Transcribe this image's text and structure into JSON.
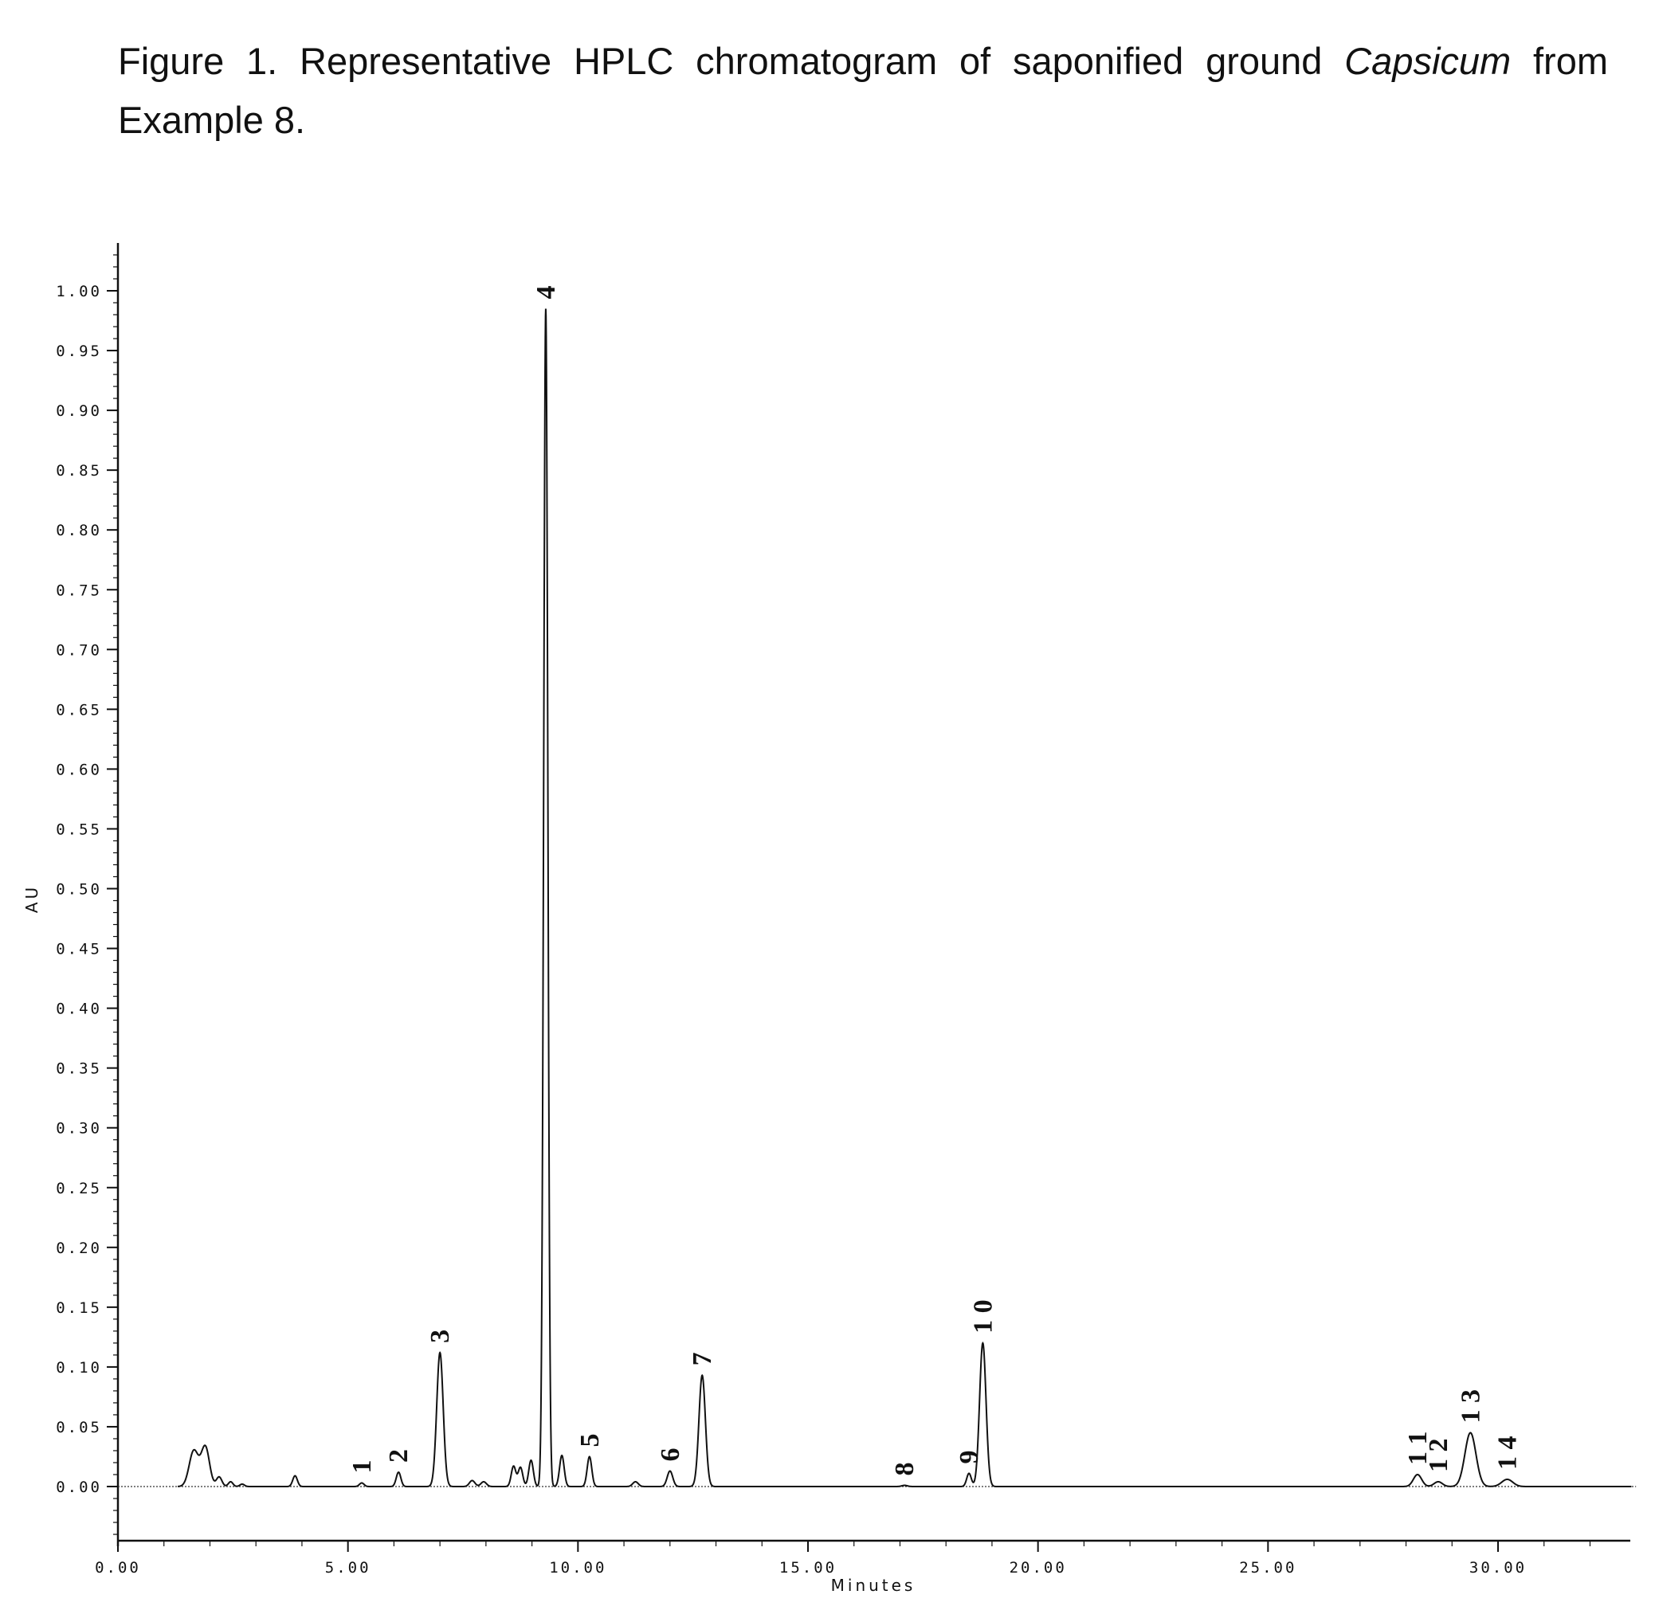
{
  "caption": {
    "prefix": "Figure 1.  Representative HPLC chromatogram of saponified ground ",
    "italic": "Capsicum",
    "suffix": " from Example 8."
  },
  "chart_data": {
    "type": "line",
    "title": "",
    "xlabel": "Minutes",
    "ylabel": "AU",
    "xlim": [
      0,
      33
    ],
    "ylim": [
      -0.05,
      1.04
    ],
    "x_ticks": [
      "0.00",
      "5.00",
      "10.00",
      "15.00",
      "20.00",
      "25.00",
      "30.00"
    ],
    "y_ticks": [
      "0.00",
      "0.05",
      "0.10",
      "0.15",
      "0.20",
      "0.25",
      "0.30",
      "0.35",
      "0.40",
      "0.45",
      "0.50",
      "0.55",
      "0.60",
      "0.65",
      "0.70",
      "0.75",
      "0.80",
      "0.85",
      "0.90",
      "0.95",
      "1.00"
    ],
    "grid": false,
    "legend": "none",
    "baseline_start": 0.0,
    "baseline_end": 33.0,
    "peaks": [
      {
        "t": 1.65,
        "h": 0.03,
        "w": 0.1
      },
      {
        "t": 1.9,
        "h": 0.033,
        "w": 0.09
      },
      {
        "t": 2.2,
        "h": 0.008,
        "w": 0.06
      },
      {
        "t": 2.45,
        "h": 0.004,
        "w": 0.05
      },
      {
        "t": 2.7,
        "h": 0.002,
        "w": 0.05
      },
      {
        "t": 3.85,
        "h": 0.009,
        "w": 0.05
      },
      {
        "t": 5.3,
        "h": 0.003,
        "w": 0.05
      },
      {
        "t": 6.1,
        "h": 0.012,
        "w": 0.05
      },
      {
        "t": 7.0,
        "h": 0.112,
        "w": 0.07
      },
      {
        "t": 7.7,
        "h": 0.005,
        "w": 0.06
      },
      {
        "t": 7.95,
        "h": 0.004,
        "w": 0.06
      },
      {
        "t": 8.6,
        "h": 0.017,
        "w": 0.05
      },
      {
        "t": 8.75,
        "h": 0.016,
        "w": 0.05
      },
      {
        "t": 8.98,
        "h": 0.022,
        "w": 0.05
      },
      {
        "t": 9.3,
        "h": 0.985,
        "w": 0.045
      },
      {
        "t": 9.65,
        "h": 0.026,
        "w": 0.05
      },
      {
        "t": 10.25,
        "h": 0.025,
        "w": 0.05
      },
      {
        "t": 11.25,
        "h": 0.004,
        "w": 0.06
      },
      {
        "t": 12.0,
        "h": 0.013,
        "w": 0.06
      },
      {
        "t": 12.7,
        "h": 0.093,
        "w": 0.07
      },
      {
        "t": 17.1,
        "h": 0.001,
        "w": 0.06
      },
      {
        "t": 18.5,
        "h": 0.011,
        "w": 0.05
      },
      {
        "t": 18.8,
        "h": 0.12,
        "w": 0.07
      },
      {
        "t": 28.25,
        "h": 0.01,
        "w": 0.09
      },
      {
        "t": 28.7,
        "h": 0.004,
        "w": 0.09
      },
      {
        "t": 29.4,
        "h": 0.045,
        "w": 0.12
      },
      {
        "t": 30.2,
        "h": 0.006,
        "w": 0.12
      }
    ],
    "peak_labels": [
      {
        "text": "1",
        "t": 5.3,
        "y": 0.003
      },
      {
        "text": "2",
        "t": 6.1,
        "y": 0.012
      },
      {
        "text": "3",
        "t": 7.0,
        "y": 0.112
      },
      {
        "text": "4",
        "t": 9.3,
        "y": 0.985
      },
      {
        "text": "5",
        "t": 10.25,
        "y": 0.025
      },
      {
        "text": "6",
        "t": 12.0,
        "y": 0.013
      },
      {
        "text": "7",
        "t": 12.7,
        "y": 0.093
      },
      {
        "text": "8",
        "t": 17.1,
        "y": 0.001
      },
      {
        "text": "9",
        "t": 18.5,
        "y": 0.011
      },
      {
        "text": "1 0",
        "t": 18.8,
        "y": 0.12
      },
      {
        "text": "1 1",
        "t": 28.25,
        "y": 0.01
      },
      {
        "text": "1 2",
        "t": 28.7,
        "y": 0.004
      },
      {
        "text": "1 3",
        "t": 29.4,
        "y": 0.045
      },
      {
        "text": "1 4",
        "t": 30.2,
        "y": 0.006
      }
    ]
  }
}
